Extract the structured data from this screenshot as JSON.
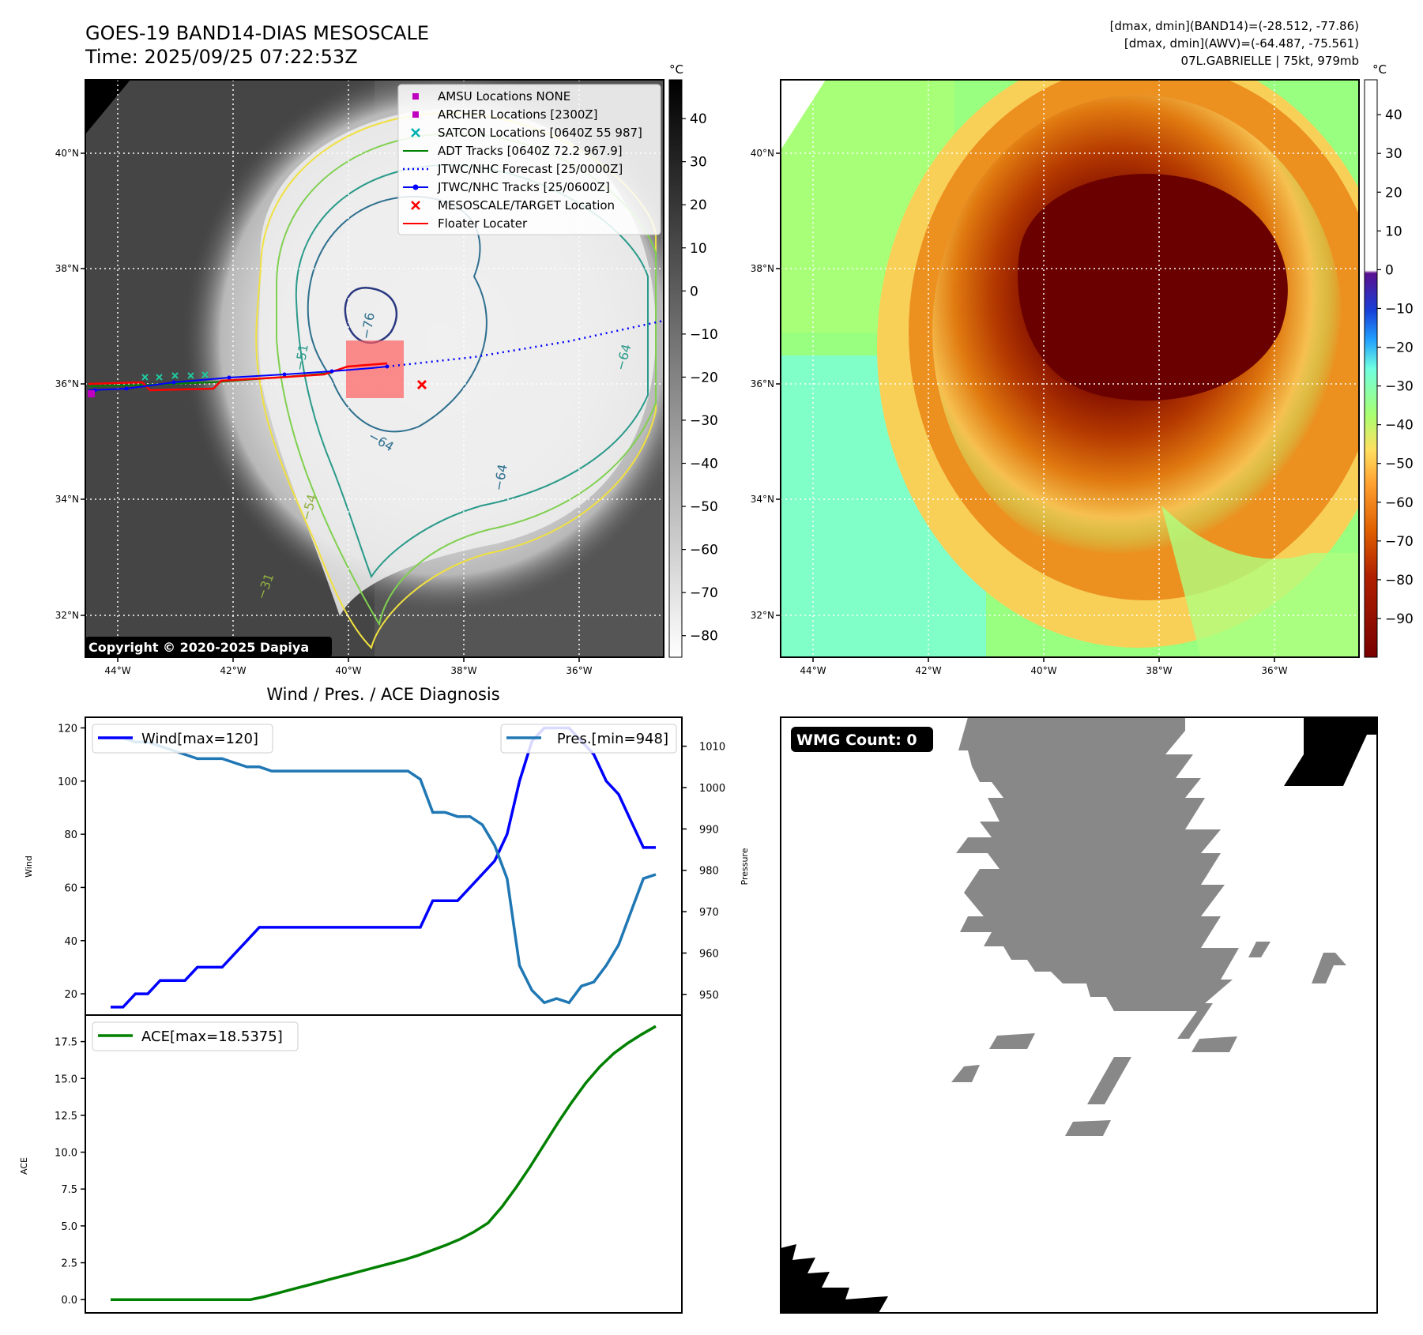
{
  "header": {
    "title_line1": "GOES-19 BAND14-DIAS MESOSCALE",
    "title_line2": "Time: 2025/09/25 07:22:53Z",
    "info_line1": "[dmax, dmin](BAND14)=(-28.512, -77.86)",
    "info_line2": "[dmax, dmin](AWV)=(-64.487, -75.561)",
    "info_line3": "07L.GABRIELLE | 75kt, 979mb"
  },
  "map_axes": {
    "lon_ticks": [
      "44°W",
      "42°W",
      "40°W",
      "38°W",
      "36°W"
    ],
    "lat_ticks": [
      "40°N",
      "38°N",
      "36°N",
      "34°N",
      "32°N"
    ],
    "unit": "°C"
  },
  "ir_panel": {
    "copyright": "Copyright © 2020-2025 Dapiya",
    "colorbar_ticks": [
      "40",
      "30",
      "20",
      "10",
      "0",
      "−10",
      "−20",
      "−30",
      "−40",
      "−50",
      "−60",
      "−70",
      "−80"
    ],
    "colorbar_range": [
      -85,
      49
    ],
    "contour_labels": [
      "−76",
      "−64",
      "−64",
      "−31",
      "−51",
      "−54",
      "−64"
    ],
    "legend": [
      {
        "label": "AMSU Locations NONE",
        "color": "#c000c0",
        "marker": "square"
      },
      {
        "label": "ARCHER Locations [2300Z]",
        "color": "#c000c0",
        "marker": "square"
      },
      {
        "label": "SATCON Locations [0640Z 55 987]",
        "color": "#00b0b0",
        "marker": "x"
      },
      {
        "label": "ADT Tracks [0640Z 72.2 967.9]",
        "color": "#008000",
        "marker": "line"
      },
      {
        "label": "JTWC/NHC Forecast [25/0000Z]",
        "color": "#0000ff",
        "marker": "dotted"
      },
      {
        "label": "JTWC/NHC Tracks [25/0600Z]",
        "color": "#0000ff",
        "marker": "dotline"
      },
      {
        "label": "MESOSCALE/TARGET Location",
        "color": "#ff0000",
        "marker": "x"
      },
      {
        "label": "Floater Locater",
        "color": "#ff0000",
        "marker": "line"
      }
    ]
  },
  "awv_panel": {
    "colorbar_ticks": [
      "40",
      "30",
      "20",
      "10",
      "0",
      "−10",
      "−20",
      "−30",
      "−40",
      "−50",
      "−60",
      "−70",
      "−80",
      "−90"
    ],
    "colorbar_range": [
      -100,
      49
    ]
  },
  "wmg_panel": {
    "badge": "WMG Count: 0"
  },
  "chart_data": [
    {
      "type": "line",
      "title": "Wind / Pres. / ACE Diagnosis",
      "ylabel": "Wind",
      "ylabel_right": "Pressure",
      "ylim": [
        12,
        124
      ],
      "ylim_right": [
        945,
        1017
      ],
      "yticks": [
        "20",
        "40",
        "60",
        "80",
        "100",
        "120"
      ],
      "yticks_right": [
        "950",
        "960",
        "970",
        "980",
        "990",
        "1000",
        "1010"
      ],
      "series": [
        {
          "name": "Wind[max=120]",
          "color": "#0000ff",
          "values": [
            15,
            15,
            20,
            20,
            25,
            25,
            25,
            30,
            30,
            30,
            35,
            40,
            45,
            45,
            45,
            45,
            45,
            45,
            45,
            45,
            45,
            45,
            45,
            45,
            45,
            45,
            55,
            55,
            55,
            60,
            65,
            70,
            80,
            100,
            115,
            120,
            120,
            120,
            115,
            110,
            100,
            95,
            85,
            75,
            75
          ]
        },
        {
          "name": "Pres.[min=948]",
          "color": "#1f77b4",
          "axis": "right",
          "values": [
            1012,
            1012,
            1011,
            1011,
            1010,
            1009,
            1008,
            1007,
            1007,
            1007,
            1006,
            1005,
            1005,
            1004,
            1004,
            1004,
            1004,
            1004,
            1004,
            1004,
            1004,
            1004,
            1004,
            1004,
            1004,
            1002,
            994,
            994,
            993,
            993,
            991,
            986,
            978,
            957,
            951,
            948,
            949,
            948,
            952,
            953,
            957,
            962,
            970,
            978,
            979
          ]
        }
      ]
    },
    {
      "type": "line",
      "ylabel": "ACE",
      "ylim": [
        -0.9,
        19.3
      ],
      "yticks": [
        "0.0",
        "2.5",
        "5.0",
        "7.5",
        "10.0",
        "12.5",
        "15.0",
        "17.5"
      ],
      "series": [
        {
          "name": "ACE[max=18.5375]",
          "color": "#008000",
          "values": [
            0,
            0,
            0,
            0,
            0,
            0,
            0,
            0,
            0,
            0,
            0,
            0.2,
            0.45,
            0.7,
            0.95,
            1.2,
            1.45,
            1.7,
            1.95,
            2.2,
            2.45,
            2.7,
            3.0,
            3.35,
            3.7,
            4.1,
            4.6,
            5.2,
            6.3,
            7.6,
            9.0,
            10.5,
            12.0,
            13.4,
            14.7,
            15.8,
            16.7,
            17.4,
            18.0,
            18.5375
          ]
        }
      ]
    }
  ]
}
